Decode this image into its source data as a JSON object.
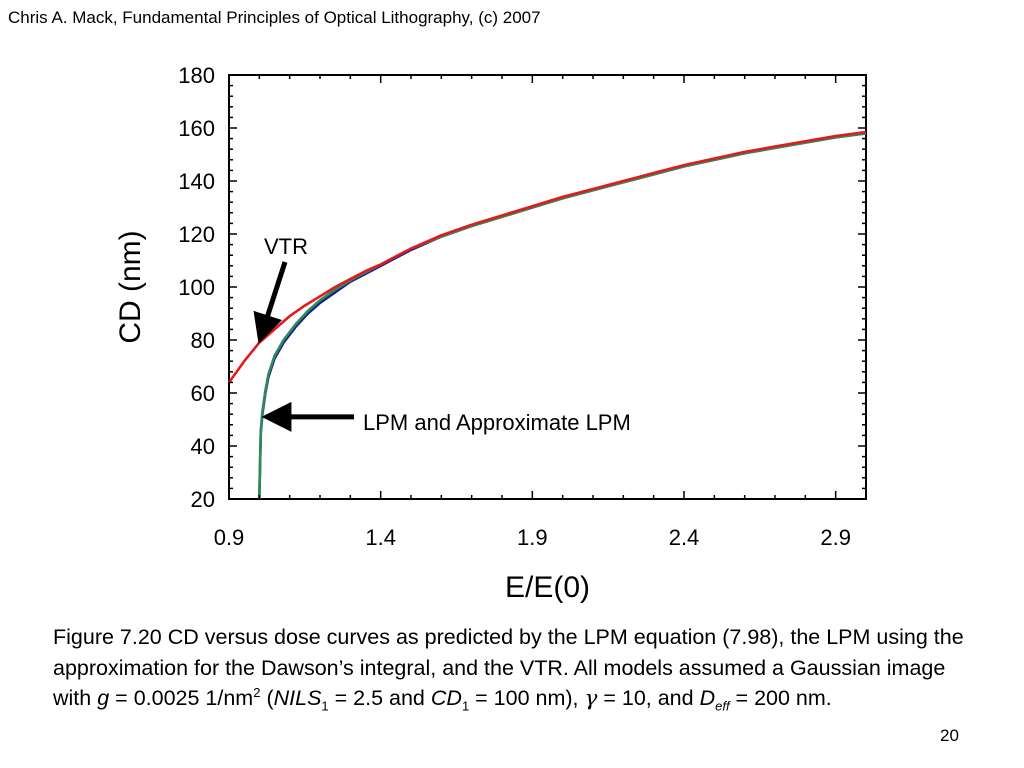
{
  "header": {
    "credit": "Chris A. Mack, Fundamental Principles of Optical Lithography, (c) 2007"
  },
  "chart_data": {
    "type": "line",
    "xlabel": "E/E(0)",
    "ylabel": "CD (nm)",
    "xlim": [
      0.9,
      3.0
    ],
    "ylim": [
      20,
      180
    ],
    "x_ticks": [
      0.9,
      1.4,
      1.9,
      2.4,
      2.9
    ],
    "x_tick_labels": [
      "0.9",
      "1.4",
      "1.9",
      "2.4",
      "2.9"
    ],
    "y_ticks": [
      20,
      40,
      60,
      80,
      100,
      120,
      140,
      160,
      180
    ],
    "y_tick_labels": [
      "20",
      "40",
      "60",
      "80",
      "100",
      "120",
      "140",
      "160",
      "180"
    ],
    "grid": false,
    "annotations": [
      {
        "text": "VTR",
        "target_x": 1.0,
        "target_y": 81
      },
      {
        "text": "LPM and Approximate LPM",
        "target_x": 1.03,
        "target_y": 51
      }
    ],
    "series": [
      {
        "color": "#1a1f8c",
        "x": [
          1.0,
          1.005,
          1.01,
          1.02,
          1.03,
          1.05,
          1.08,
          1.12,
          1.16,
          1.2,
          1.25,
          1.3,
          1.35,
          1.4,
          1.45,
          1.5,
          1.6,
          1.7,
          1.8,
          1.9,
          2.0,
          2.1,
          2.2,
          2.3,
          2.4,
          2.5,
          2.6,
          2.7,
          2.8,
          2.9,
          3.0
        ],
        "y": [
          20,
          45,
          52,
          60,
          66,
          73,
          79,
          85,
          90,
          94,
          98,
          102,
          105,
          108,
          111,
          114,
          119,
          123,
          126.5,
          130,
          133.5,
          136.5,
          139.5,
          142.5,
          145.5,
          148,
          150.5,
          152.5,
          154.5,
          156.5,
          158
        ]
      },
      {
        "color": "#2e8b57",
        "x": [
          1.0,
          1.005,
          1.01,
          1.02,
          1.03,
          1.05,
          1.08,
          1.12,
          1.16,
          1.2,
          1.25,
          1.3,
          1.35,
          1.4,
          1.45,
          1.5,
          1.6,
          1.7,
          1.8,
          1.9,
          2.0,
          2.1,
          2.2,
          2.3,
          2.4,
          2.5,
          2.6,
          2.7,
          2.8,
          2.9,
          3.0
        ],
        "y": [
          20,
          46,
          53,
          61,
          67,
          74,
          80,
          86,
          91,
          95,
          99,
          102.5,
          105.5,
          108.5,
          111.5,
          114.5,
          119,
          123,
          126.5,
          130,
          133.5,
          136.5,
          139.5,
          142.5,
          145.5,
          148,
          150.5,
          152.5,
          154.5,
          156.5,
          158
        ]
      },
      {
        "color": "#e31a1c",
        "x": [
          0.9,
          0.95,
          1.0,
          1.05,
          1.1,
          1.15,
          1.2,
          1.25,
          1.3,
          1.35,
          1.4,
          1.45,
          1.5,
          1.6,
          1.7,
          1.8,
          1.9,
          2.0,
          2.1,
          2.2,
          2.3,
          2.4,
          2.5,
          2.6,
          2.7,
          2.8,
          2.9,
          3.0
        ],
        "y": [
          64,
          72,
          79,
          84,
          89,
          93,
          96.5,
          100,
          103,
          106,
          108.5,
          111.5,
          114.5,
          119.5,
          123.5,
          127,
          130.5,
          134,
          137,
          140,
          143,
          146,
          148.5,
          151,
          153,
          155,
          157,
          158.5
        ]
      }
    ]
  },
  "caption": {
    "prefix": "Figure 7.20  CD versus dose curves as predicted by the LPM equation (7.98), the LPM using the approximation for the Dawson’s integral, and the VTR.  All models assumed a Gaussian image with ",
    "g_symbol": "g",
    "g_value": " = 0.0025 1/nm",
    "nm_exponent": "2",
    "open_paren": " (",
    "nils_symbol": "NILS",
    "nils_subscript": "1",
    "nils_value": " = 2.5 and ",
    "cd_symbol": "CD",
    "cd_subscript": "1",
    "cd_value": " = 100 nm), ",
    "gamma_symbol": "γ",
    "gamma_value": " = 10, and ",
    "d_symbol": "D",
    "d_subscript": "eff",
    "d_value": " = 200 nm."
  },
  "page_number": "20"
}
